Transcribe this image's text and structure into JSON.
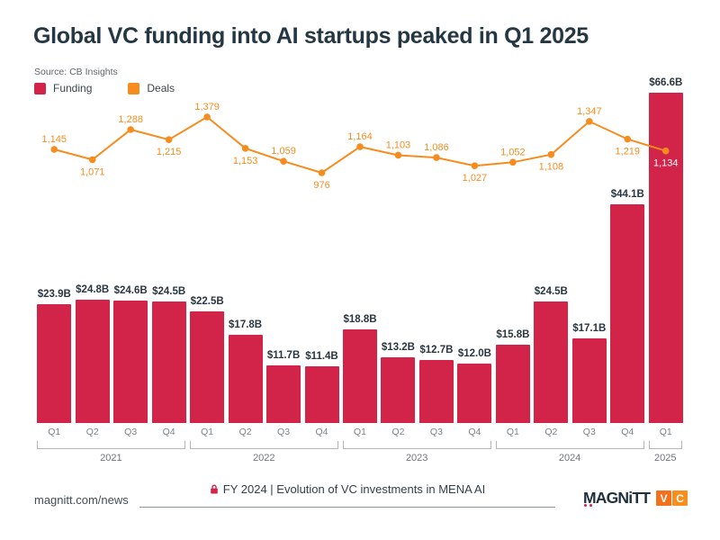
{
  "header": {
    "title": "Global VC funding into AI startups peaked in Q1 2025",
    "source": "Source: CB Insights"
  },
  "legend": {
    "items": [
      {
        "label": "Funding",
        "color": "#D22349"
      },
      {
        "label": "Deals",
        "color": "#F68C1E"
      }
    ]
  },
  "chart_data": {
    "type": "bar+line",
    "categories": [
      "Q1",
      "Q2",
      "Q3",
      "Q4",
      "Q1",
      "Q2",
      "Q3",
      "Q4",
      "Q1",
      "Q2",
      "Q3",
      "Q4",
      "Q1",
      "Q2",
      "Q3",
      "Q4",
      "Q1"
    ],
    "year_groups": [
      {
        "label": "2021",
        "from": 0,
        "to": 3
      },
      {
        "label": "2022",
        "from": 4,
        "to": 7
      },
      {
        "label": "2023",
        "from": 8,
        "to": 11
      },
      {
        "label": "2024",
        "from": 12,
        "to": 15
      },
      {
        "label": "2025",
        "from": 16,
        "to": 16
      }
    ],
    "series": [
      {
        "name": "Funding",
        "type": "bar",
        "unit": "USD billions",
        "color": "#D22349",
        "values": [
          23.9,
          24.8,
          24.6,
          24.5,
          22.5,
          17.8,
          11.7,
          11.4,
          18.8,
          13.2,
          12.7,
          12.0,
          15.8,
          24.5,
          17.1,
          44.1,
          66.6
        ],
        "labels": [
          "$23.9B",
          "$24.8B",
          "$24.6B",
          "$24.5B",
          "$22.5B",
          "$17.8B",
          "$11.7B",
          "$11.4B",
          "$18.8B",
          "$13.2B",
          "$12.7B",
          "$12.0B",
          "$15.8B",
          "$24.5B",
          "$17.1B",
          "$44.1B",
          "$66.6B"
        ]
      },
      {
        "name": "Deals",
        "type": "line",
        "color": "#F68C1E",
        "values": [
          1145,
          1071,
          1288,
          1215,
          1379,
          1153,
          1059,
          976,
          1164,
          1103,
          1086,
          1027,
          1052,
          1108,
          1347,
          1219,
          1134
        ],
        "labels": [
          "1,145",
          "1,071",
          "1,288",
          "1,215",
          "1,379",
          "1,153",
          "1,059",
          "976",
          "1,164",
          "1,103",
          "1,086",
          "1,027",
          "1,052",
          "1,108",
          "1,347",
          "1,219",
          "1,134"
        ],
        "label_side": [
          "above",
          "below",
          "above",
          "below",
          "above",
          "below",
          "above",
          "below",
          "above",
          "above",
          "above",
          "below",
          "above",
          "below",
          "above",
          "below",
          "on-bar"
        ]
      }
    ],
    "ylim_funding": [
      0,
      67
    ],
    "ylim_deals": [
      976,
      1379
    ],
    "grid": false,
    "legend_position": "top-left"
  },
  "footer": {
    "url": "magnitt.com/news",
    "caption": "FY 2024 | Evolution of VC investments in MENA AI",
    "lock_color": "#D22349",
    "logo": {
      "word": "MAGNiTT",
      "badges": [
        {
          "label": "V",
          "color": "#F3701F"
        },
        {
          "label": "C",
          "color": "#F78E1E"
        }
      ]
    }
  }
}
